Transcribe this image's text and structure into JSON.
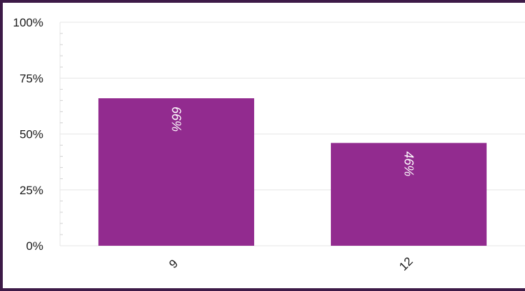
{
  "chart_data": {
    "type": "bar",
    "categories": [
      "9",
      "12"
    ],
    "values": [
      66,
      46
    ],
    "data_labels": [
      "66%",
      "46%"
    ],
    "ylim": [
      0,
      100
    ],
    "yticks": [
      "0%",
      "25%",
      "50%",
      "75%",
      "100%"
    ],
    "ytick_values": [
      0,
      25,
      50,
      75,
      100
    ],
    "grid": true,
    "bar_color": "#922b8f",
    "title": "",
    "xlabel": "",
    "ylabel": ""
  },
  "colors": {
    "border": "#3d1a47",
    "grid": "#e6e6e6",
    "bar": "#922b8f"
  }
}
